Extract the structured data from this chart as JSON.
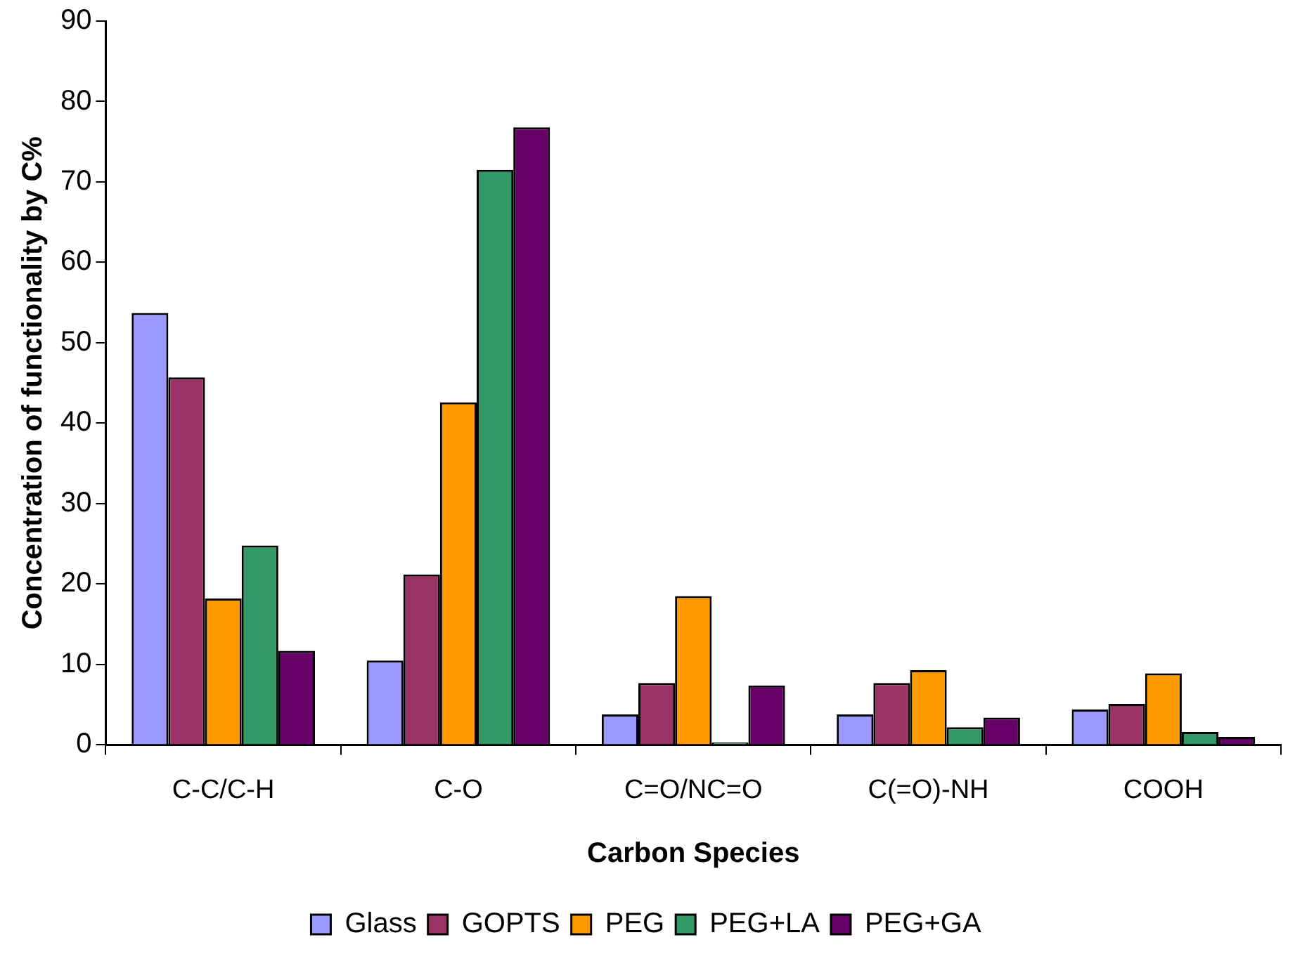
{
  "chart_data": {
    "type": "bar",
    "xlabel": "Carbon Species",
    "ylabel": "Concentration of functionality by C%",
    "categories": [
      "C-C/C-H",
      "C-O",
      "C=O/NC=O",
      "C(=O)-NH",
      "COOH"
    ],
    "series": [
      {
        "name": "Glass",
        "color": "#9999ff",
        "values": [
          53.7,
          10.5,
          3.8,
          3.8,
          4.4
        ]
      },
      {
        "name": "GOPTS",
        "color": "#993366",
        "values": [
          45.7,
          21.2,
          7.7,
          7.7,
          5.1
        ]
      },
      {
        "name": "PEG",
        "color": "#ff9900",
        "values": [
          18.2,
          42.6,
          18.5,
          9.3,
          8.9
        ]
      },
      {
        "name": "PEG+LA",
        "color": "#339966",
        "values": [
          24.8,
          71.5,
          0.3,
          2.2,
          1.6
        ]
      },
      {
        "name": "PEG+GA",
        "color": "#660066",
        "values": [
          11.7,
          76.8,
          7.4,
          3.4,
          1.0
        ]
      }
    ],
    "ylim": [
      0,
      90
    ],
    "yticks": [
      0,
      10,
      20,
      30,
      40,
      50,
      60,
      70,
      80,
      90
    ],
    "grid": false,
    "legend": "bottom"
  }
}
